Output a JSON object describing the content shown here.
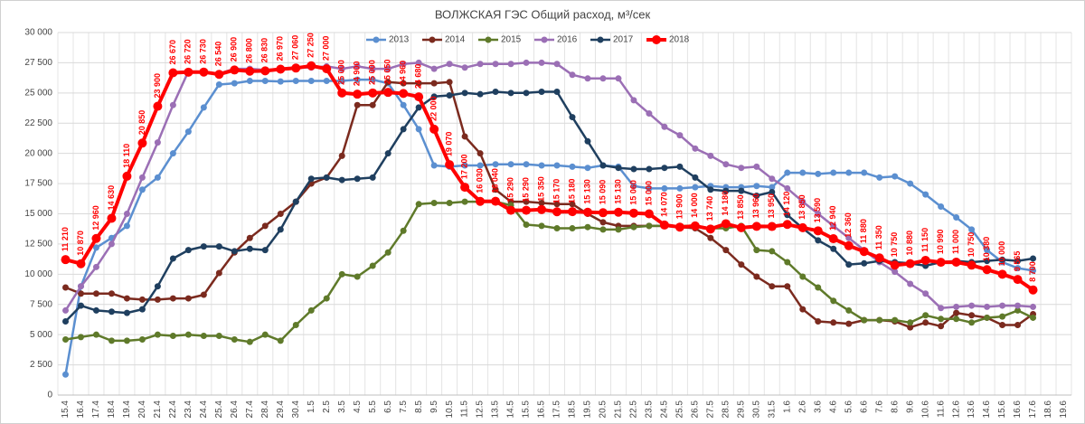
{
  "chart_data": {
    "type": "line",
    "title": "ВОЛЖСКАЯ ГЭС Общий расход, м³/сек",
    "categories": [
      "15.4",
      "16.4",
      "17.4",
      "18.4",
      "19.4",
      "20.4",
      "21.4",
      "22.4",
      "23.4",
      "24.4",
      "25.4",
      "26.4",
      "27.4",
      "28.4",
      "29.4",
      "30.4",
      "1.5",
      "2.5",
      "3.5",
      "4.5",
      "5.5",
      "6.5",
      "7.5",
      "8.5",
      "9.5",
      "10.5",
      "11.5",
      "12.5",
      "13.5",
      "14.5",
      "15.5",
      "16.5",
      "17.5",
      "18.5",
      "19.5",
      "20.5",
      "21.5",
      "22.5",
      "23.5",
      "24.5",
      "25.5",
      "26.5",
      "27.5",
      "28.5",
      "29.5",
      "30.5",
      "31.5",
      "1.6",
      "2.6",
      "3.6",
      "4.6",
      "5.6",
      "6.6",
      "7.6",
      "8.6",
      "9.6",
      "10.6",
      "11.6",
      "12.6",
      "13.6",
      "14.6",
      "15.6",
      "16.6",
      "17.6",
      "18.6",
      "19.6"
    ],
    "ylim": [
      0,
      30000
    ],
    "yticks": [
      {
        "value": 0,
        "label": "0"
      },
      {
        "value": 2500,
        "label": "2 500"
      },
      {
        "value": 5000,
        "label": "5 000"
      },
      {
        "value": 7500,
        "label": "7 500"
      },
      {
        "value": 10000,
        "label": "10 000"
      },
      {
        "value": 12500,
        "label": "12 500"
      },
      {
        "value": 15000,
        "label": "15 000"
      },
      {
        "value": 17500,
        "label": "17 500"
      },
      {
        "value": 20000,
        "label": "20 000"
      },
      {
        "value": 22500,
        "label": "22 500"
      },
      {
        "value": 25000,
        "label": "25 000"
      },
      {
        "value": 27500,
        "label": "27 500"
      },
      {
        "value": 30000,
        "label": "30 000"
      }
    ],
    "grid": true,
    "legend": "top",
    "series": [
      {
        "name": "2013",
        "color": "#5b8fd0",
        "values": [
          1700,
          9000,
          12200,
          13000,
          14000,
          17000,
          18000,
          20000,
          21800,
          23800,
          25700,
          25800,
          26000,
          26000,
          25950,
          26000,
          26000,
          26000,
          26000,
          26100,
          26100,
          25800,
          24000,
          22000,
          19000,
          18900,
          19000,
          19000,
          19100,
          19100,
          19100,
          19000,
          19000,
          18900,
          18800,
          19000,
          18900,
          17300,
          17100,
          17100,
          17100,
          17200,
          17300,
          17200,
          17200,
          17300,
          17200,
          18400,
          18400,
          18300,
          18400,
          18400,
          18400,
          18000,
          18100,
          17500,
          16600,
          15600,
          14700,
          13700,
          12000,
          11000,
          10500,
          10300,
          null,
          null
        ]
      },
      {
        "name": "2014",
        "color": "#7b2a1e",
        "values": [
          8900,
          8400,
          8400,
          8400,
          8000,
          7900,
          7900,
          8000,
          8000,
          8300,
          10100,
          11800,
          13000,
          14000,
          15000,
          16000,
          17500,
          18000,
          19800,
          24000,
          24000,
          25900,
          25800,
          25800,
          25800,
          25900,
          21400,
          20000,
          17000,
          16000,
          16000,
          15900,
          15800,
          15800,
          15000,
          14300,
          14000,
          14000,
          14000,
          14000,
          13900,
          13800,
          13000,
          12000,
          10800,
          9800,
          9000,
          9000,
          7100,
          6100,
          6000,
          5900,
          6200,
          6200,
          6100,
          5600,
          6000,
          5700,
          6800,
          6600,
          6400,
          5800,
          5800,
          6700,
          null,
          null
        ]
      },
      {
        "name": "2015",
        "color": "#5f7a2a",
        "values": [
          4600,
          4800,
          5000,
          4500,
          4500,
          4600,
          5000,
          4900,
          5000,
          4900,
          4900,
          4600,
          4400,
          5000,
          4500,
          5800,
          7000,
          8000,
          10000,
          9800,
          10700,
          11800,
          13600,
          15800,
          15900,
          15900,
          16000,
          16000,
          16000,
          15700,
          14100,
          14000,
          13800,
          13800,
          13900,
          13700,
          13700,
          13900,
          14000,
          14000,
          14000,
          14000,
          13800,
          13800,
          14000,
          12000,
          11900,
          11000,
          9800,
          8900,
          7800,
          7000,
          6200,
          6200,
          6200,
          6000,
          6600,
          6300,
          6300,
          6000,
          6400,
          6500,
          7000,
          6400,
          null,
          null
        ]
      },
      {
        "name": "2016",
        "color": "#9b6fb5",
        "values": [
          7000,
          9000,
          10600,
          12500,
          15000,
          18000,
          20900,
          24000,
          26800,
          26700,
          26600,
          27000,
          27000,
          26900,
          27000,
          27100,
          27100,
          27200,
          27000,
          27200,
          27000,
          27000,
          27400,
          27500,
          27000,
          27400,
          27100,
          27400,
          27400,
          27400,
          27500,
          27500,
          27400,
          26500,
          26200,
          26200,
          26200,
          24400,
          23300,
          22200,
          21500,
          20400,
          19800,
          19100,
          18800,
          18900,
          17900,
          17100,
          16000,
          15000,
          14000,
          13000,
          12000,
          11000,
          10200,
          9200,
          8400,
          7200,
          7300,
          7400,
          7300,
          7400,
          7400,
          7300,
          null,
          null
        ]
      },
      {
        "name": "2017",
        "color": "#1f3f5f",
        "values": [
          6100,
          7400,
          7000,
          6900,
          6800,
          7100,
          9000,
          11300,
          12000,
          12300,
          12300,
          11900,
          12100,
          12000,
          13700,
          16000,
          17900,
          18000,
          17800,
          17900,
          18000,
          20000,
          22000,
          23800,
          24700,
          24800,
          25000,
          24900,
          25100,
          25000,
          25000,
          25100,
          25100,
          23000,
          21000,
          19000,
          18800,
          18700,
          18700,
          18800,
          18900,
          18000,
          17000,
          16900,
          16900,
          16500,
          16800,
          14900,
          13800,
          12800,
          12100,
          10800,
          10900,
          11100,
          11000,
          10900,
          10700,
          11000,
          11100,
          11000,
          11100,
          11200,
          11100,
          11300,
          null,
          null
        ]
      },
      {
        "name": "2018",
        "color": "#ff0000",
        "values": [
          11210,
          10870,
          12960,
          14630,
          18110,
          20850,
          23900,
          26670,
          26720,
          26730,
          26540,
          26900,
          26800,
          26830,
          26970,
          27060,
          27250,
          27000,
          25000,
          24900,
          25000,
          25050,
          24960,
          24680,
          22000,
          19070,
          17200,
          16030,
          16040,
          15290,
          15290,
          15350,
          15170,
          15180,
          15130,
          15090,
          15130,
          15060,
          15000,
          14070,
          13900,
          14000,
          13740,
          14180,
          13850,
          13960,
          13950,
          14120,
          13850,
          13590,
          12940,
          12360,
          11880,
          11350,
          10750,
          10880,
          11150,
          10990,
          11000,
          10750,
          10380,
          10000,
          9565,
          8700,
          null,
          null
        ],
        "value_labels": [
          "11 210",
          "10 870",
          "12 960",
          "14 630",
          "18 110",
          "20 850",
          "23 900",
          "26 670",
          "26 720",
          "26 730",
          "26 540",
          "26 900",
          "26 800",
          "26 830",
          "26 970",
          "27 060",
          "27 250",
          "27 000",
          "25 000",
          "24 900",
          "25 000",
          "25 050",
          "24 960",
          "24 680",
          "22 000",
          "19 070",
          "17 200",
          "16 030",
          "16 040",
          "15 290",
          "15 290",
          "15 350",
          "15 170",
          "15 180",
          "15 130",
          "15 090",
          "15 130",
          "15 060",
          "15 000",
          "14 070",
          "13 900",
          "14 000",
          "13 740",
          "14 180",
          "13 850",
          "13 960",
          "13 950",
          "14 120",
          "13 850",
          "13 590",
          "12 940",
          "12 360",
          "11 880",
          "11 350",
          "10 750",
          "10 880",
          "11 150",
          "10 990",
          "11 000",
          "10 750",
          "10 380",
          "10 000",
          "9 565",
          "8 700",
          null,
          null
        ]
      }
    ]
  }
}
